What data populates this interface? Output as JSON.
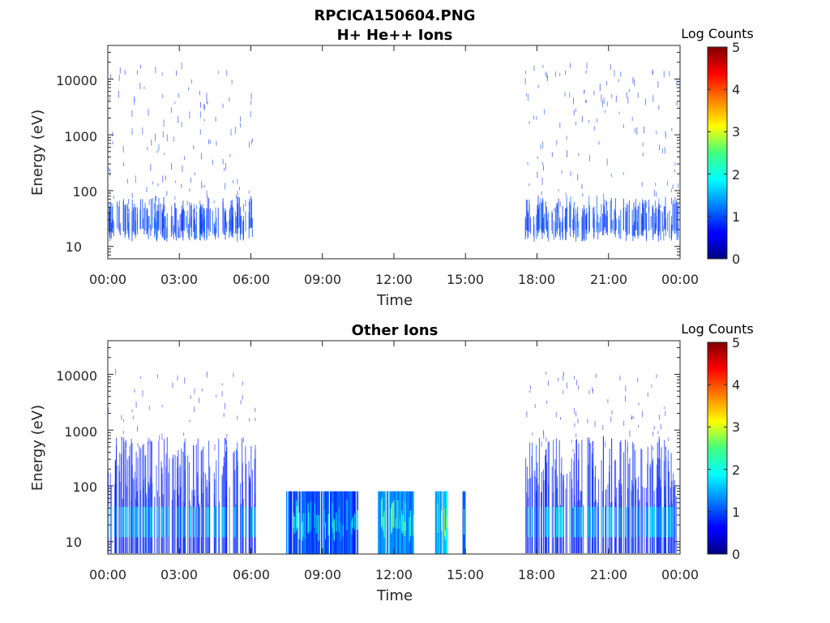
{
  "figure": {
    "title": "RPCICA150604.PNG"
  },
  "colormap": "jet",
  "chart_data": [
    {
      "type": "heatmap",
      "title": "H+ He++ Ions",
      "xlabel": "Time",
      "ylabel": "Energy (eV)",
      "y_scale": "log",
      "ylim": [
        6,
        40000
      ],
      "xlim_hours": [
        0,
        24
      ],
      "x_tick_labels": [
        "00:00",
        "03:00",
        "06:00",
        "09:00",
        "12:00",
        "15:00",
        "18:00",
        "21:00",
        "00:00"
      ],
      "y_tick_labels": [
        "10",
        "100",
        "1000",
        "10000"
      ],
      "y_tick_values": [
        10,
        100,
        1000,
        10000
      ],
      "colorbar": {
        "label": "Log Counts",
        "ticks": [
          "0",
          "1",
          "2",
          "3",
          "4",
          "5"
        ],
        "range": [
          0,
          5
        ]
      },
      "active_intervals_hours": [
        [
          0.0,
          6.2
        ],
        [
          17.5,
          24.0
        ]
      ],
      "typical_log_counts": 1.0
    },
    {
      "type": "heatmap",
      "title": "Other Ions",
      "xlabel": "Time",
      "ylabel": "Energy (eV)",
      "y_scale": "log",
      "ylim": [
        6,
        40000
      ],
      "xlim_hours": [
        0,
        24
      ],
      "x_tick_labels": [
        "00:00",
        "03:00",
        "06:00",
        "09:00",
        "12:00",
        "15:00",
        "18:00",
        "21:00",
        "00:00"
      ],
      "y_tick_labels": [
        "10",
        "100",
        "1000",
        "10000"
      ],
      "y_tick_values": [
        10,
        100,
        1000,
        10000
      ],
      "colorbar": {
        "label": "Log Counts",
        "ticks": [
          "0",
          "1",
          "2",
          "3",
          "4",
          "5"
        ],
        "range": [
          0,
          5
        ]
      },
      "sparse_intervals_hours": [
        [
          0.0,
          6.2
        ],
        [
          17.5,
          24.0
        ]
      ],
      "dense_blocks": [
        {
          "start_hour": 7.5,
          "end_hour": 10.5,
          "max_energy_ev": 80,
          "log_counts": 1.0
        },
        {
          "start_hour": 11.35,
          "end_hour": 12.85,
          "max_energy_ev": 80,
          "log_counts": 1.3
        },
        {
          "start_hour": 13.75,
          "end_hour": 14.25,
          "max_energy_ev": 80,
          "log_counts": 1.6
        },
        {
          "start_hour": 14.9,
          "end_hour": 15.0,
          "max_energy_ev": 80,
          "log_counts": 1.2
        }
      ]
    }
  ]
}
